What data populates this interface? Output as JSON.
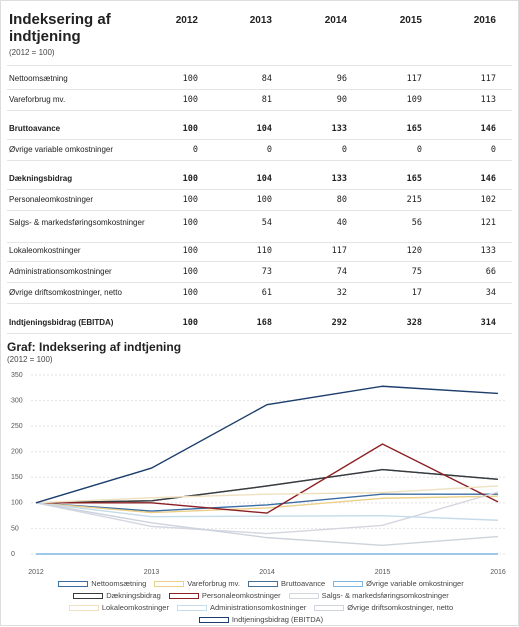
{
  "table": {
    "title": "Indeksering af indtjening",
    "subtitle": "(2012 = 100)"
  },
  "chart_data": {
    "type": "line",
    "title": "Graf: Indeksering af indtjening",
    "subtitle": "(2012 = 100)",
    "categories": [
      "2012",
      "2013",
      "2014",
      "2015",
      "2016"
    ],
    "ylim": [
      0,
      350
    ],
    "yticks": [
      0,
      50,
      100,
      150,
      200,
      250,
      300,
      350
    ],
    "grid": true,
    "series": [
      {
        "name": "Nettoomsætning",
        "color": "#3b6da3",
        "values": [
          100,
          84,
          96,
          117,
          117
        ]
      },
      {
        "name": "Vareforbrug mv.",
        "color": "#ecd08a",
        "values": [
          100,
          81,
          90,
          109,
          113
        ]
      },
      {
        "name": "Bruttoavance",
        "color": "#4a6f95",
        "bold": true,
        "values": [
          100,
          104,
          133,
          165,
          146
        ]
      },
      {
        "name": "Øvrige variable omkostninger",
        "color": "#7fb7e0",
        "values": [
          0,
          0,
          0,
          0,
          0
        ]
      },
      {
        "name": "Dækningsbidrag",
        "color": "#3a3a3a",
        "bold": true,
        "values": [
          100,
          104,
          133,
          165,
          146
        ]
      },
      {
        "name": "Personaleomkostninger",
        "color": "#8b1f24",
        "values": [
          100,
          100,
          80,
          215,
          102
        ]
      },
      {
        "name": "Salgs- & markedsføringsomkostninger",
        "color": "#d4d6e0",
        "values": [
          100,
          54,
          40,
          56,
          121
        ]
      },
      {
        "name": "Lokaleomkostninger",
        "color": "#efe1c0",
        "values": [
          100,
          110,
          117,
          120,
          133
        ]
      },
      {
        "name": "Administrationsomkostninger",
        "color": "#c4dbea",
        "values": [
          100,
          73,
          74,
          75,
          66
        ]
      },
      {
        "name": "Øvrige driftsomkostninger, netto",
        "color": "#cdd3dc",
        "values": [
          100,
          61,
          32,
          17,
          34
        ]
      },
      {
        "name": "Indtjeningsbidrag (EBITDA)",
        "color": "#1d3d6c",
        "bold": true,
        "values": [
          100,
          168,
          292,
          328,
          314
        ]
      }
    ]
  }
}
